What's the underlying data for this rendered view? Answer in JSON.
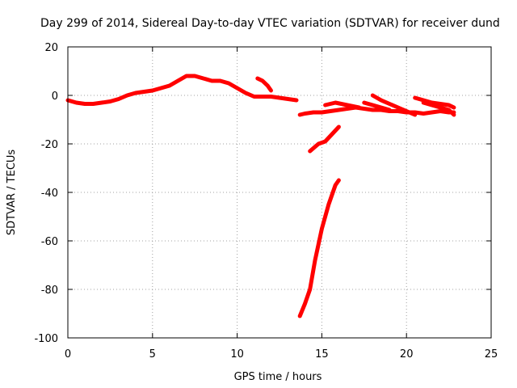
{
  "chart_data": {
    "type": "line",
    "title": "Day 299 of 2014, Sidereal Day-to-day VTEC variation (SDTVAR) for receiver dund",
    "xlabel": "GPS time / hours",
    "ylabel": "SDTVAR / TECUs",
    "xlim": [
      0,
      25
    ],
    "ylim": [
      -100,
      20
    ],
    "xticks": [
      0,
      5,
      10,
      15,
      20,
      25
    ],
    "yticks": [
      -100,
      -80,
      -60,
      -40,
      -20,
      0,
      20
    ],
    "xtick_labels": [
      "0",
      "5",
      "10",
      "15",
      "20",
      "25"
    ],
    "ytick_labels": [
      "-100",
      "-80",
      "-60",
      "-40",
      "-20",
      "0",
      "20"
    ],
    "grid": true,
    "legend": "none",
    "color": "#ff0000",
    "series": [
      {
        "name": "track-1",
        "x": [
          0.0,
          0.5,
          1.0,
          1.5,
          2.0,
          2.5,
          3.0,
          3.5,
          4.0,
          4.5,
          5.0,
          5.5,
          6.0,
          6.5,
          7.0,
          7.5,
          8.0,
          8.5,
          9.0,
          9.5,
          10.0,
          10.5,
          11.0,
          11.5,
          12.0,
          12.5,
          13.0,
          13.5
        ],
        "y": [
          -2,
          -3,
          -3.5,
          -3.5,
          -3,
          -2.5,
          -1.5,
          0,
          1,
          1.5,
          2,
          3,
          4,
          6,
          8,
          8,
          7,
          6,
          6,
          5,
          3,
          1,
          -0.5,
          -0.5,
          -0.5,
          -1,
          -1.5,
          -2
        ]
      },
      {
        "name": "track-2",
        "x": [
          11.2,
          11.5,
          11.8,
          12.0
        ],
        "y": [
          7,
          6,
          4,
          2
        ]
      },
      {
        "name": "track-3",
        "x": [
          13.7,
          14.0,
          14.5,
          15.0,
          15.5,
          16.0,
          16.5,
          17.0,
          17.5,
          18.0,
          18.5,
          19.0,
          19.5,
          20.0,
          20.5,
          21.0,
          21.5,
          22.0,
          22.5,
          22.8
        ],
        "y": [
          -8,
          -7.5,
          -7,
          -7,
          -6.5,
          -6,
          -5.5,
          -5,
          -5.5,
          -6,
          -6,
          -6.5,
          -6.5,
          -7,
          -7,
          -7.5,
          -7,
          -6.5,
          -7,
          -7
        ]
      },
      {
        "name": "track-4",
        "x": [
          15.2,
          15.8,
          16.5,
          17.2
        ],
        "y": [
          -4,
          -3,
          -4,
          -5
        ]
      },
      {
        "name": "track-5",
        "x": [
          17.5,
          18.0,
          18.5,
          19.0
        ],
        "y": [
          -3,
          -4,
          -5,
          -6
        ]
      },
      {
        "name": "track-6",
        "x": [
          18.0,
          18.5,
          19.0,
          19.5,
          20.0,
          20.5
        ],
        "y": [
          0,
          -2,
          -3.5,
          -5,
          -6.5,
          -8
        ]
      },
      {
        "name": "track-7",
        "x": [
          20.5,
          21.0,
          21.5,
          22.0,
          22.5,
          22.8
        ],
        "y": [
          -1,
          -2,
          -3,
          -3.5,
          -4,
          -5
        ]
      },
      {
        "name": "track-8",
        "x": [
          21.0,
          21.5,
          22.0,
          22.5,
          22.8
        ],
        "y": [
          -3,
          -4,
          -5,
          -6,
          -8
        ]
      },
      {
        "name": "track-9",
        "x": [
          14.3,
          14.8,
          15.2,
          15.6,
          16.0
        ],
        "y": [
          -23,
          -20,
          -19,
          -16,
          -13
        ]
      },
      {
        "name": "track-10",
        "x": [
          13.7,
          14.0,
          14.3,
          14.6,
          15.0,
          15.4,
          15.8,
          16.0
        ],
        "y": [
          -91,
          -86,
          -80,
          -68,
          -55,
          -45,
          -37,
          -35
        ]
      }
    ]
  }
}
